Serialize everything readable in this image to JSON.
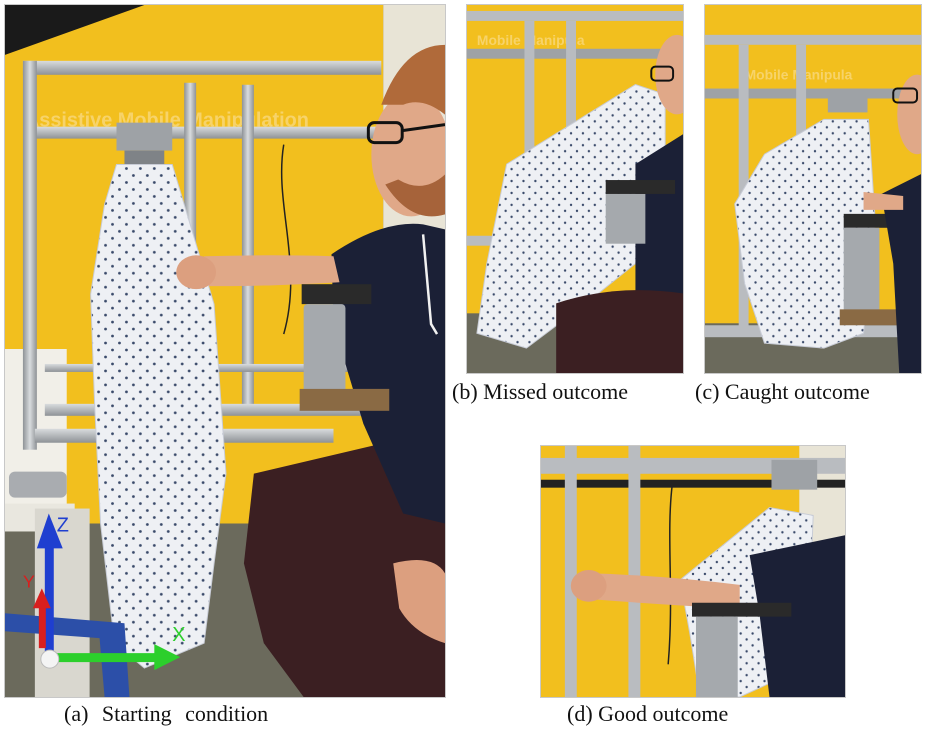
{
  "figure": {
    "panel_a": {
      "caption": "(a) Starting condition",
      "axes": {
        "z_label": "Z",
        "y_label": "Y",
        "x_label": "X"
      },
      "banner_text": "Assistive Mobile Manipulation"
    },
    "panel_b": {
      "caption": "(b) Missed outcome",
      "banner_text": "Mobile Manipula"
    },
    "panel_c": {
      "caption": "(c) Caught outcome",
      "banner_text": "Mobile Manipula"
    },
    "panel_d": {
      "caption": "(d) Good outcome"
    }
  },
  "colors": {
    "backdrop_yellow": "#f2bf1e",
    "frame_aluminum": "#b9bcc0",
    "gown_white": "#eef0f4",
    "shirt_navy": "#1b2036",
    "pants_maroon": "#3b1f22",
    "skin": "#e0a888",
    "hair_ginger": "#b06a3a",
    "axis_z_blue": "#1f3fd0",
    "axis_y_red": "#d81f1f",
    "axis_x_green": "#2ccf2c"
  }
}
